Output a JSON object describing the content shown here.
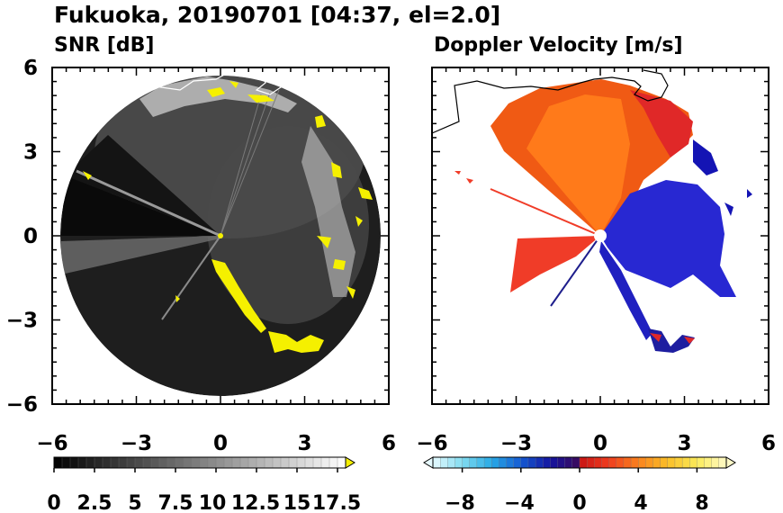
{
  "figure": {
    "title": "Fukuoka, 20190701 [04:37, el=2.0]"
  },
  "chart_data": [
    {
      "type": "heatmap",
      "title": "SNR [dB]",
      "projection": "polar-radar",
      "x_range": [
        -6,
        6
      ],
      "y_range": [
        -6,
        6
      ],
      "x_ticks": [
        "−6",
        "−3",
        "0",
        "3",
        "6"
      ],
      "y_ticks": [
        "6",
        "3",
        "0",
        "−3",
        "−6"
      ],
      "radar_range_km": 5.6,
      "colorbar": {
        "min": 0,
        "max": 18,
        "step": 0.5,
        "extend": "max",
        "tick_labels": [
          "0",
          "2.5",
          "5",
          "7.5",
          "10",
          "12.5",
          "15",
          "17.5"
        ],
        "tick_values": [
          0,
          2.5,
          5,
          7.5,
          10,
          12.5,
          15,
          17.5
        ],
        "over_color": "#f5f000"
      },
      "features": [
        {
          "name": "strong echo band north",
          "x": [
            -1,
            1
          ],
          "y": [
            4.3,
            5.0
          ]
        },
        {
          "name": "strong echo line south-east",
          "x": [
            0,
            3.3
          ],
          "y": [
            -0.8,
            -4.2
          ]
        },
        {
          "name": "blocked sector west",
          "azimuth_deg": [
            240,
            300
          ]
        }
      ]
    },
    {
      "type": "heatmap",
      "title": "Doppler Velocity [m/s]",
      "projection": "polar-radar",
      "x_range": [
        -6,
        6
      ],
      "y_range": [
        -6,
        6
      ],
      "x_ticks": [
        "−6",
        "−3",
        "0",
        "3",
        "6"
      ],
      "y_ticks": [
        "6",
        "3",
        "0",
        "−3",
        "−6"
      ],
      "colorbar": {
        "min": -10,
        "max": 10,
        "step": 0.5,
        "extend": "both",
        "tick_labels": [
          "−8",
          "−4",
          "0",
          "4",
          "8"
        ],
        "tick_values": [
          -8,
          -4,
          0,
          4,
          8
        ]
      },
      "features": [
        {
          "name": "receding flow north-west",
          "value_ms": 4
        },
        {
          "name": "approaching flow east",
          "value_ms": -6
        }
      ]
    }
  ]
}
